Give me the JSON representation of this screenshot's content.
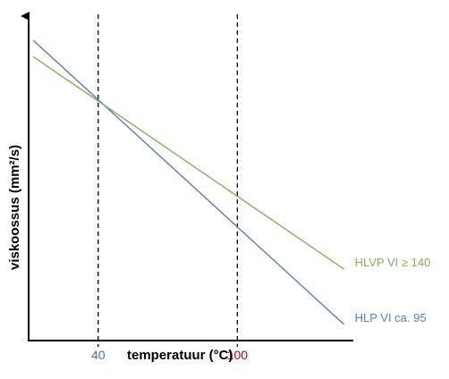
{
  "chart_data": {
    "type": "line",
    "title": "",
    "xlabel": "temperatuur (°C)",
    "ylabel": "viskoossus (mm²/s)",
    "xlim": [
      10,
      150
    ],
    "ylim": [
      0,
      100
    ],
    "grid": false,
    "x_ticks": [
      {
        "value": 40,
        "label": "40",
        "color": "#4a73ab"
      },
      {
        "value": 100,
        "label": "100",
        "color": "#c0001a"
      }
    ],
    "reference_lines": [
      {
        "axis": "x",
        "value": 40,
        "style": "dashed",
        "color": "#000000"
      },
      {
        "axis": "x",
        "value": 100,
        "style": "dashed",
        "color": "#000000"
      }
    ],
    "series": [
      {
        "name": "HLP VI ca. 95",
        "color": "#5b7fb8",
        "x": [
          12,
          146
        ],
        "y": [
          92.5,
          5
        ]
      },
      {
        "name": "HLVP VI ≥ 140",
        "color": "#7db454",
        "x": [
          12,
          146
        ],
        "y": [
          87.5,
          22
        ]
      }
    ]
  }
}
